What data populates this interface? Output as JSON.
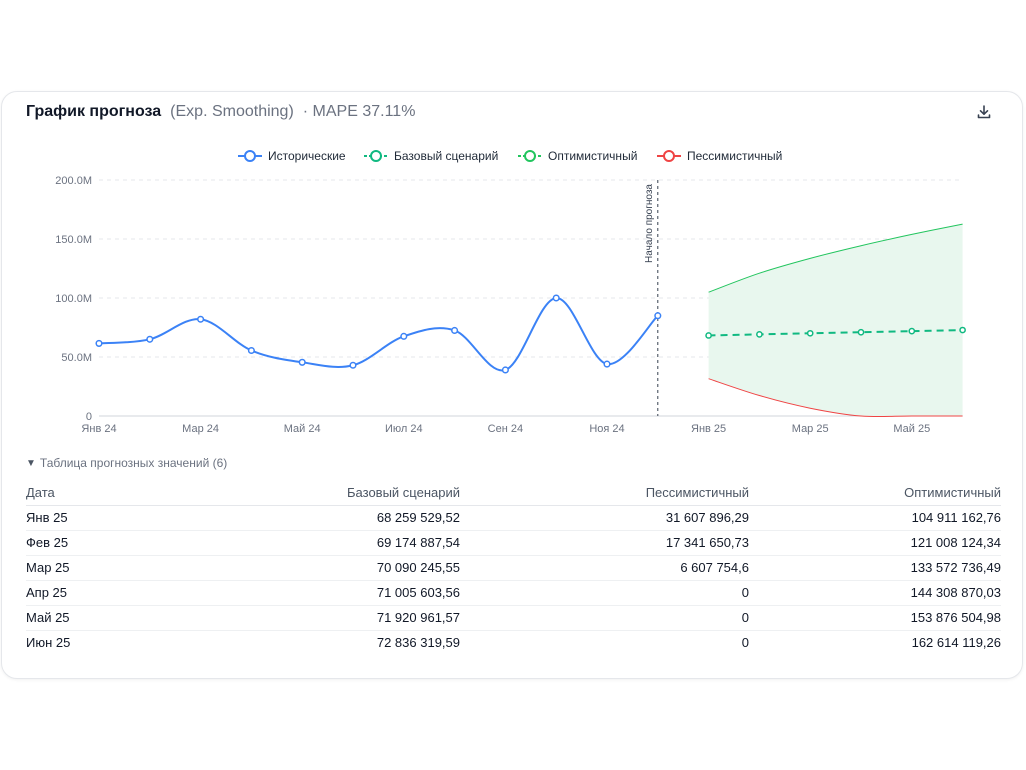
{
  "header": {
    "title": "График прогноза",
    "method": "(Exp. Smoothing)",
    "mape": "· MAPE 37.11%",
    "download_icon": "download-icon"
  },
  "colors": {
    "historical": "#3b82f6",
    "base": "#10b981",
    "optimistic": "#22c55e",
    "pessimistic": "#ef4444",
    "band_fill": "#e8f7ee"
  },
  "chart_data": {
    "type": "line",
    "legend": [
      "Исторические",
      "Базовый сценарий",
      "Оптимистичный",
      "Пессимистичный"
    ],
    "legend_position": "top-center",
    "y_ticks": [
      "0",
      "50.0M",
      "100.0M",
      "150.0M",
      "200.0M"
    ],
    "ylim": [
      0,
      200000000
    ],
    "grid": true,
    "x_tick_labels": [
      "Янв 24",
      "Мар 24",
      "Май 24",
      "Июл 24",
      "Сен 24",
      "Ноя 24",
      "Янв 25",
      "Мар 25",
      "Май 25"
    ],
    "forecast_start_label": "Начало прогноза",
    "historical": {
      "name": "Исторические",
      "x": [
        "Янв 24",
        "Фев 24",
        "Мар 24",
        "Апр 24",
        "Май 24",
        "Июн 24",
        "Июл 24",
        "Авг 24",
        "Сен 24",
        "Окт 24",
        "Ноя 24",
        "Дек 24"
      ],
      "values": [
        61500000,
        65000000,
        82000000,
        55500000,
        45500000,
        43000000,
        67500000,
        72500000,
        39000000,
        100000000,
        44000000,
        85000000
      ]
    },
    "forecast": {
      "x": [
        "Янв 25",
        "Фев 25",
        "Мар 25",
        "Апр 25",
        "Май 25",
        "Июн 25"
      ],
      "base": [
        68259529.52,
        69174887.54,
        70090245.55,
        71005603.56,
        71920961.57,
        72836319.59
      ],
      "pessimistic": [
        31607896.29,
        17341650.73,
        6607754.6,
        0,
        0,
        0
      ],
      "optimistic": [
        104911162.76,
        121008124.34,
        133572736.49,
        144308870.03,
        153876504.98,
        162614119.26
      ]
    }
  },
  "table": {
    "toggle_label": "Таблица прогнозных значений (6)",
    "columns": [
      "Дата",
      "Базовый сценарий",
      "Пессимистичный",
      "Оптимистичный"
    ],
    "rows": [
      {
        "date": "Янв 25",
        "base": "68 259 529,52",
        "pess": "31 607 896,29",
        "opt": "104 911 162,76"
      },
      {
        "date": "Фев 25",
        "base": "69 174 887,54",
        "pess": "17 341 650,73",
        "opt": "121 008 124,34"
      },
      {
        "date": "Мар 25",
        "base": "70 090 245,55",
        "pess": "6 607 754,6",
        "opt": "133 572 736,49"
      },
      {
        "date": "Апр 25",
        "base": "71 005 603,56",
        "pess": "0",
        "opt": "144 308 870,03"
      },
      {
        "date": "Май 25",
        "base": "71 920 961,57",
        "pess": "0",
        "opt": "153 876 504,98"
      },
      {
        "date": "Июн 25",
        "base": "72 836 319,59",
        "pess": "0",
        "opt": "162 614 119,26"
      }
    ]
  }
}
